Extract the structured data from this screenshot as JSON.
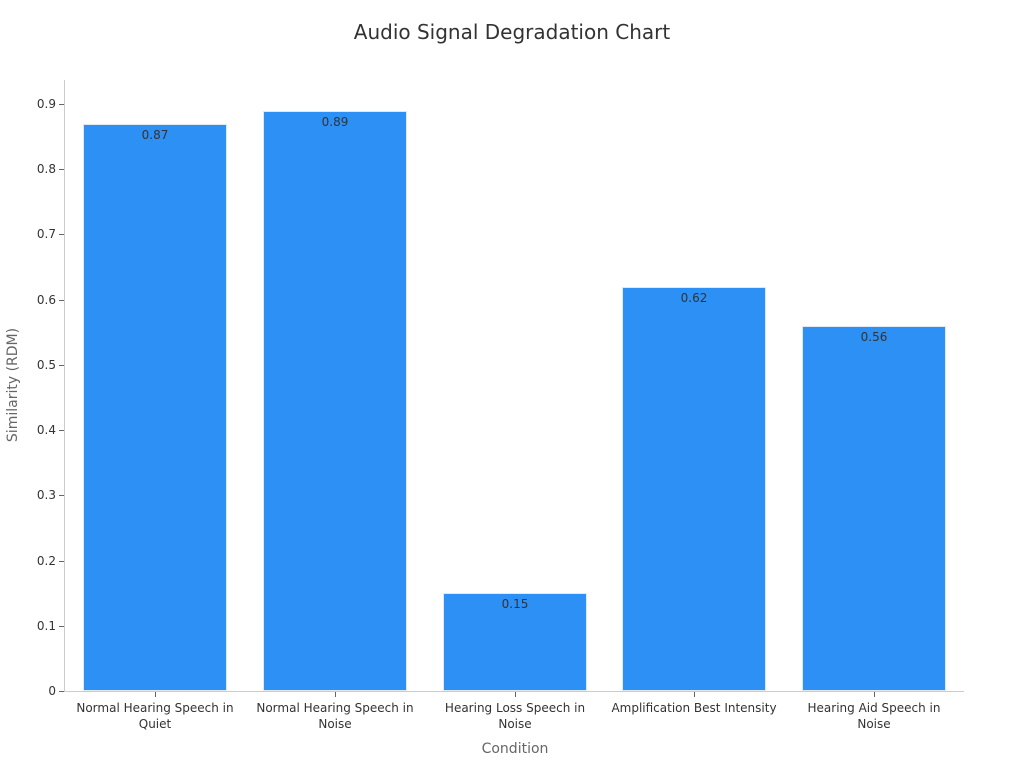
{
  "chart_data": {
    "type": "bar",
    "title": "Audio Signal Degradation Chart",
    "xlabel": "Condition",
    "ylabel": "Similarity (RDM)",
    "categories": [
      "Normal Hearing Speech in Quiet",
      "Normal Hearing Speech in Noise",
      "Hearing Loss Speech in Noise",
      "Amplification Best Intensity",
      "Hearing Aid Speech in Noise"
    ],
    "values": [
      0.87,
      0.89,
      0.15,
      0.62,
      0.56
    ],
    "data_labels": [
      "0.87",
      "0.89",
      "0.15",
      "0.62",
      "0.56"
    ],
    "ylim": [
      0,
      0.94
    ],
    "yticks": [
      "0",
      "0.1",
      "0.2",
      "0.3",
      "0.4",
      "0.5",
      "0.6",
      "0.7",
      "0.8",
      "0.9"
    ],
    "grid": false,
    "legend": null,
    "bar_color": "#2d90f5"
  },
  "labels": {
    "x0": [
      "Normal Hearing Speech in",
      "Quiet"
    ],
    "x1": [
      "Normal Hearing Speech in",
      "Noise"
    ],
    "x2": [
      "Hearing Loss Speech in",
      "Noise"
    ],
    "x3": [
      "Amplification Best Intensity"
    ],
    "x4": [
      "Hearing Aid Speech in",
      "Noise"
    ]
  }
}
